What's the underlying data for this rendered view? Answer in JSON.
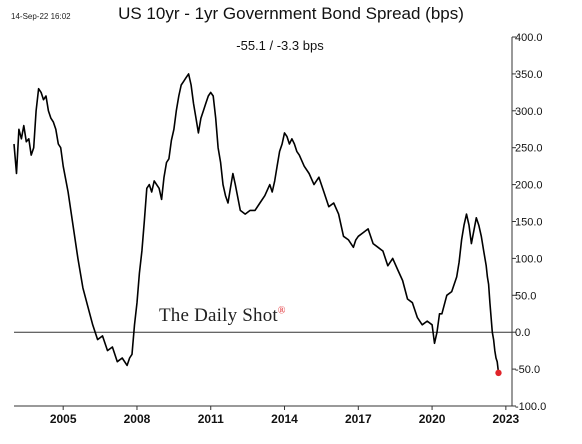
{
  "header": {
    "timestamp": "14-Sep-22 16:02",
    "title": "US 10yr - 1yr Government Bond Spread (bps)",
    "readout": "-55.1  /  -3.3 bps",
    "watermark": "The Daily Shot",
    "watermark_mark": "®"
  },
  "chart_data": {
    "type": "line",
    "title": "US 10yr - 1yr Government Bond Spread (bps)",
    "xlabel": "",
    "ylabel": "",
    "xlim": [
      2003.0,
      2023.25
    ],
    "ylim": [
      -100,
      400
    ],
    "x_ticks": [
      2005,
      2008,
      2011,
      2014,
      2017,
      2020,
      2023
    ],
    "y_ticks": [
      {
        "value": 400,
        "label": "400.0"
      },
      {
        "value": 350,
        "label": "350.0"
      },
      {
        "value": 300,
        "label": "300.0"
      },
      {
        "value": 250,
        "label": "250.0"
      },
      {
        "value": 200,
        "label": "200.0"
      },
      {
        "value": 150,
        "label": "150.0"
      },
      {
        "value": 100,
        "label": "100.0"
      },
      {
        "value": 50,
        "label": "50.0"
      },
      {
        "value": 0,
        "label": "0.0"
      },
      {
        "value": -50,
        "label": "-50.0"
      },
      {
        "value": -100,
        "label": "-100.0"
      }
    ],
    "y_axis_side": "right",
    "grid": false,
    "reference_line": 0,
    "series_color": "#000000",
    "marker_color": "#e0242a",
    "last_value": -55.1,
    "series": [
      {
        "x": [
          2003.0,
          2003.1,
          2003.2,
          2003.3,
          2003.4,
          2003.5,
          2003.6,
          2003.7,
          2003.8,
          2003.9,
          2004.0,
          2004.1,
          2004.2,
          2004.3,
          2004.4,
          2004.5,
          2004.6,
          2004.7,
          2004.8,
          2004.9,
          2005.0,
          2005.2,
          2005.4,
          2005.6,
          2005.8,
          2006.0,
          2006.2,
          2006.4,
          2006.6,
          2006.8,
          2007.0,
          2007.2,
          2007.4,
          2007.6,
          2007.7,
          2007.8,
          2007.9,
          2008.0,
          2008.1,
          2008.2,
          2008.3,
          2008.4,
          2008.5,
          2008.6,
          2008.7,
          2008.8,
          2008.9,
          2009.0,
          2009.1,
          2009.2,
          2009.3,
          2009.4,
          2009.5,
          2009.6,
          2009.7,
          2009.8,
          2009.9,
          2010.0,
          2010.1,
          2010.2,
          2010.3,
          2010.4,
          2010.5,
          2010.6,
          2010.7,
          2010.8,
          2010.9,
          2011.0,
          2011.1,
          2011.2,
          2011.3,
          2011.4,
          2011.5,
          2011.6,
          2011.7,
          2011.8,
          2011.9,
          2012.0,
          2012.2,
          2012.4,
          2012.6,
          2012.8,
          2013.0,
          2013.2,
          2013.4,
          2013.5,
          2013.6,
          2013.7,
          2013.8,
          2013.9,
          2014.0,
          2014.1,
          2014.2,
          2014.3,
          2014.4,
          2014.5,
          2014.6,
          2014.8,
          2015.0,
          2015.2,
          2015.4,
          2015.6,
          2015.8,
          2016.0,
          2016.2,
          2016.4,
          2016.6,
          2016.8,
          2016.9,
          2017.0,
          2017.2,
          2017.4,
          2017.6,
          2017.8,
          2018.0,
          2018.2,
          2018.4,
          2018.6,
          2018.8,
          2019.0,
          2019.2,
          2019.4,
          2019.6,
          2019.8,
          2020.0,
          2020.1,
          2020.2,
          2020.3,
          2020.4,
          2020.6,
          2020.8,
          2021.0,
          2021.1,
          2021.2,
          2021.3,
          2021.4,
          2021.5,
          2021.6,
          2021.8,
          2021.9,
          2022.0,
          2022.1,
          2022.2,
          2022.25,
          2022.3,
          2022.35,
          2022.4,
          2022.45,
          2022.5,
          2022.55,
          2022.6,
          2022.65,
          2022.7
        ],
        "y": [
          255,
          215,
          275,
          262,
          280,
          258,
          262,
          240,
          250,
          300,
          330,
          325,
          315,
          320,
          300,
          290,
          285,
          275,
          255,
          250,
          225,
          190,
          145,
          100,
          60,
          35,
          10,
          -10,
          -5,
          -25,
          -20,
          -40,
          -35,
          -45,
          -35,
          -30,
          10,
          40,
          80,
          110,
          150,
          195,
          200,
          190,
          205,
          200,
          195,
          180,
          210,
          230,
          235,
          260,
          275,
          300,
          320,
          335,
          340,
          345,
          350,
          335,
          310,
          290,
          270,
          290,
          300,
          310,
          320,
          325,
          320,
          290,
          250,
          230,
          200,
          185,
          175,
          195,
          215,
          200,
          165,
          160,
          165,
          165,
          175,
          185,
          200,
          190,
          205,
          225,
          245,
          255,
          270,
          265,
          255,
          262,
          255,
          245,
          240,
          225,
          215,
          200,
          210,
          190,
          170,
          175,
          160,
          130,
          125,
          115,
          125,
          130,
          135,
          140,
          120,
          115,
          110,
          90,
          100,
          85,
          70,
          45,
          40,
          20,
          10,
          15,
          10,
          -15,
          0,
          25,
          25,
          50,
          55,
          75,
          95,
          125,
          145,
          160,
          145,
          120,
          155,
          145,
          130,
          110,
          90,
          75,
          65,
          40,
          20,
          0,
          -10,
          -25,
          -35,
          -40,
          -55
        ]
      }
    ]
  }
}
